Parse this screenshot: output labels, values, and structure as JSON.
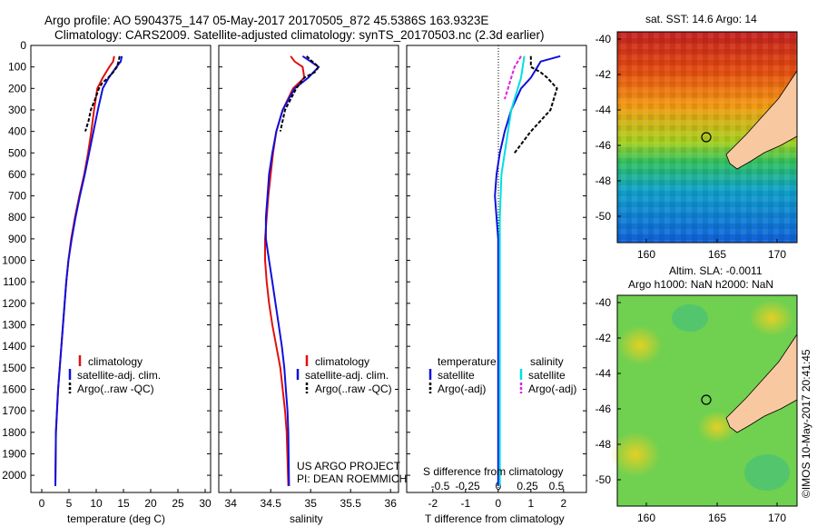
{
  "header": {
    "title_line1": "Argo profile: AO 5904375_147 05-May-2017 20170505_872 45.5386S 163.9323E",
    "title_line2": "Climatology: CARS2009. Satellite-adjusted climatology: synTS_20170503.nc (2.3d earlier)"
  },
  "credits": {
    "project": "US ARGO PROJECT",
    "pi": "PI: DEAN ROEMMICH"
  },
  "watermark": "©IMOS 10-May-2017 20:41:45",
  "colors": {
    "climatology": "#e01010",
    "satellite": "#1010dd",
    "argo": "#000000",
    "cyan": "#00e0e0",
    "magenta": "#e020e0",
    "land": "#f8c9a0"
  },
  "panels": {
    "temperature": {
      "xlabel": "temperature (deg C)",
      "legend": [
        "climatology",
        "satellite-adj. clim.",
        "Argo(..raw -QC)"
      ]
    },
    "salinity": {
      "xlabel": "salinity",
      "legend": [
        "climatology",
        "satellite-adj. clim.",
        "Argo(..raw -QC)"
      ]
    },
    "difference": {
      "xlabel": "T difference from climatology",
      "xlabel_top": "S difference from climatology",
      "legend_left_title": "temperature",
      "legend_right_title": "salinity",
      "legend_left": [
        "satellite",
        "Argo(-adj)"
      ],
      "legend_right": [
        "satellite",
        "Argo(-adj)"
      ]
    }
  },
  "maps": {
    "sst": {
      "title": "sat. SST: 14.6 Argo: 14"
    },
    "sla": {
      "title1": "Altim. SLA: -0.0011",
      "title2": "Argo h1000: NaN h2000: NaN"
    }
  },
  "chart_data": [
    {
      "type": "line",
      "title": "",
      "xlabel": "temperature (deg C)",
      "ylabel": "",
      "xlim": [
        -2,
        31
      ],
      "ylim": [
        2080,
        0
      ],
      "x_ticks": [
        0,
        5,
        10,
        15,
        20,
        25,
        30
      ],
      "y_ticks": [
        0,
        100,
        200,
        300,
        400,
        500,
        600,
        700,
        800,
        900,
        1000,
        1100,
        1200,
        1300,
        1400,
        1500,
        1600,
        1700,
        1800,
        1900,
        2000
      ],
      "series": [
        {
          "name": "climatology",
          "x": [
            13.3,
            13.1,
            12.4,
            11.2,
            10.2,
            9.6,
            9.1,
            8.5,
            7.8,
            6.9,
            6.1,
            5.4,
            4.9,
            4.5,
            4.2,
            3.9,
            3.6,
            3.3,
            3.0,
            2.8,
            2.6,
            2.5
          ],
          "y": [
            50,
            75,
            100,
            150,
            200,
            300,
            400,
            500,
            600,
            700,
            800,
            900,
            1000,
            1100,
            1200,
            1300,
            1400,
            1500,
            1600,
            1700,
            1800,
            2050
          ]
        },
        {
          "name": "satellite-adj. clim.",
          "x": [
            14.7,
            14.5,
            13.7,
            12.3,
            11.2,
            10.3,
            9.5,
            8.7,
            7.9,
            7.0,
            6.2,
            5.5,
            4.9,
            4.5,
            4.2,
            3.9,
            3.6,
            3.3,
            3.0,
            2.8,
            2.6,
            2.5
          ],
          "y": [
            50,
            75,
            100,
            150,
            200,
            300,
            400,
            500,
            600,
            700,
            800,
            900,
            1000,
            1100,
            1200,
            1300,
            1400,
            1500,
            1600,
            1700,
            1800,
            2050
          ]
        },
        {
          "name": "Argo(..raw -QC)",
          "x": [
            14.3,
            14.1,
            13.8,
            13.1,
            12.2,
            11.1,
            10.5,
            9.8,
            9.0,
            8.6,
            8.0
          ],
          "y": [
            50,
            75,
            100,
            125,
            150,
            175,
            200,
            250,
            300,
            350,
            400
          ]
        }
      ]
    },
    {
      "type": "line",
      "title": "",
      "xlabel": "salinity",
      "ylabel": "",
      "xlim": [
        33.85,
        36.1
      ],
      "ylim": [
        2080,
        0
      ],
      "x_ticks": [
        34,
        34.5,
        35,
        35.5,
        36
      ],
      "series": [
        {
          "name": "climatology",
          "x": [
            34.75,
            34.8,
            34.9,
            34.92,
            34.78,
            34.65,
            34.57,
            34.53,
            34.5,
            34.47,
            34.45,
            34.43,
            34.43,
            34.45,
            34.48,
            34.52,
            34.57,
            34.62,
            34.65,
            34.68,
            34.7,
            34.72
          ],
          "y": [
            50,
            75,
            100,
            150,
            200,
            300,
            400,
            500,
            600,
            700,
            800,
            900,
            1000,
            1100,
            1200,
            1300,
            1400,
            1500,
            1600,
            1700,
            1800,
            2050
          ]
        },
        {
          "name": "satellite-adj. clim.",
          "x": [
            34.9,
            35.0,
            35.1,
            34.97,
            34.8,
            34.65,
            34.57,
            34.52,
            34.48,
            34.46,
            34.44,
            34.44,
            34.48,
            34.52,
            34.56,
            34.6,
            34.64,
            34.67,
            34.69,
            34.71,
            34.72,
            34.73
          ],
          "y": [
            50,
            75,
            100,
            150,
            200,
            300,
            400,
            500,
            600,
            700,
            800,
            900,
            1000,
            1100,
            1200,
            1300,
            1400,
            1500,
            1600,
            1700,
            1800,
            2050
          ]
        },
        {
          "name": "Argo(..raw -QC)",
          "x": [
            34.95,
            35.02,
            35.1,
            35.05,
            34.92,
            34.82,
            34.75,
            34.68,
            34.62
          ],
          "y": [
            50,
            75,
            100,
            125,
            150,
            200,
            250,
            300,
            400
          ]
        }
      ]
    },
    {
      "type": "line",
      "title": "",
      "xlabel": "T difference from climatology",
      "ylabel": "",
      "xlim": [
        -2.8,
        2.7
      ],
      "ylim": [
        2080,
        0
      ],
      "x_ticks": [
        -2,
        -1,
        0,
        1,
        2
      ],
      "x_top_label": "S difference from climatology",
      "x_top_ticks": [
        "-0.5",
        "-0.25",
        "0",
        "0.25",
        "0.5"
      ],
      "series": [
        {
          "name": "temperature satellite",
          "x": [
            1.9,
            1.3,
            1.2,
            1.1,
            1.0,
            0.7,
            0.4,
            0.2,
            0.05,
            -0.05,
            -0.1,
            -0.05,
            0.0,
            0.0,
            0.0,
            0.0,
            0.0
          ],
          "y": [
            50,
            75,
            100,
            125,
            150,
            200,
            300,
            400,
            500,
            600,
            700,
            800,
            900,
            1000,
            1300,
            1700,
            2050
          ]
        },
        {
          "name": "temperature Argo(-adj)",
          "x": [
            1.0,
            1.0,
            1.3,
            1.5,
            1.8,
            1.7,
            1.6,
            1.3,
            1.0,
            0.5
          ],
          "y": [
            50,
            100,
            125,
            150,
            200,
            250,
            300,
            350,
            400,
            500
          ]
        },
        {
          "name": "salinity satellite",
          "x": [
            0.8,
            0.75,
            0.7,
            0.6,
            0.5,
            0.4,
            0.3,
            0.2,
            0.1,
            0.05,
            0.05,
            0.05,
            0.05,
            0.05
          ],
          "y": [
            50,
            100,
            150,
            200,
            250,
            300,
            400,
            500,
            600,
            800,
            1000,
            1400,
            1800,
            2050
          ]
        },
        {
          "name": "salinity Argo(-adj)",
          "x": [
            0.7,
            0.5,
            0.4,
            0.3,
            0.2
          ],
          "y": [
            50,
            100,
            150,
            200,
            250
          ]
        }
      ]
    }
  ],
  "map_axes": {
    "lat_ticks": [
      "-40",
      "-42",
      "-44",
      "-46",
      "-48",
      "-50"
    ],
    "lon_ticks": [
      "160",
      "165",
      "170"
    ]
  }
}
